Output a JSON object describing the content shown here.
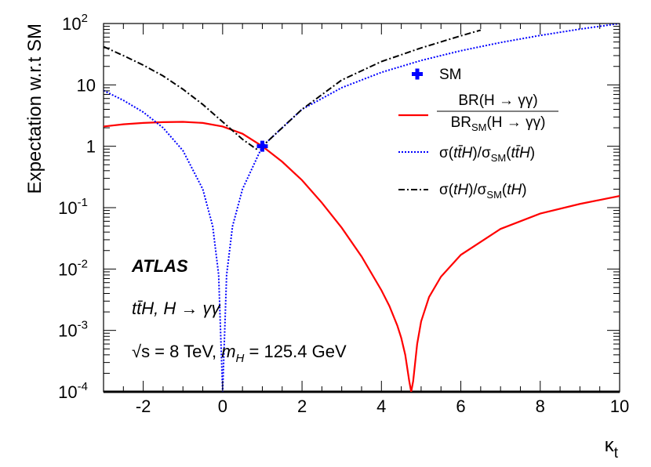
{
  "chart_data": {
    "type": "line",
    "xlabel": "κ",
    "xlabel_sub": "t",
    "ylabel": "Expectation w.r.t SM",
    "xlim": [
      -3,
      10
    ],
    "ylim": [
      0.0001,
      100
    ],
    "yscale": "log",
    "grid": false,
    "legend_position": "top-right",
    "x_ticks": [
      {
        "v": -2,
        "label": "-2"
      },
      {
        "v": 0,
        "label": "0"
      },
      {
        "v": 2,
        "label": "2"
      },
      {
        "v": 4,
        "label": "4"
      },
      {
        "v": 6,
        "label": "6"
      },
      {
        "v": 8,
        "label": "8"
      },
      {
        "v": 10,
        "label": "10"
      }
    ],
    "y_ticks": [
      {
        "v": 0.0001,
        "base": "10",
        "exp": "-4"
      },
      {
        "v": 0.001,
        "base": "10",
        "exp": "-3"
      },
      {
        "v": 0.01,
        "base": "10",
        "exp": "-2"
      },
      {
        "v": 0.1,
        "base": "10",
        "exp": "-1"
      },
      {
        "v": 1,
        "base": "1",
        "exp": ""
      },
      {
        "v": 10,
        "base": "10",
        "exp": ""
      },
      {
        "v": 100,
        "base": "10",
        "exp": "2"
      }
    ],
    "series": [
      {
        "key": "br",
        "color": "#ff0000",
        "dash": "",
        "x": [
          -3,
          -2.5,
          -2,
          -1.5,
          -1,
          -0.5,
          0,
          0.5,
          1,
          1.5,
          2,
          2.5,
          3,
          3.5,
          4,
          4.2,
          4.4,
          4.5,
          4.6,
          4.7,
          4.75,
          4.8,
          4.9,
          5.0,
          5.2,
          5.5,
          6,
          7,
          8,
          9,
          10
        ],
        "y": [
          2.1,
          2.28,
          2.4,
          2.47,
          2.5,
          2.4,
          2.1,
          1.6,
          1.0,
          0.56,
          0.28,
          0.12,
          0.047,
          0.016,
          0.0045,
          0.0025,
          0.0012,
          0.00075,
          0.0004,
          0.00015,
          0.0001,
          0.00015,
          0.0006,
          0.0014,
          0.0035,
          0.0075,
          0.017,
          0.045,
          0.08,
          0.115,
          0.155
        ]
      },
      {
        "key": "tth",
        "color": "#0000ff",
        "dash": "2,2",
        "x": [
          -3,
          -2.5,
          -2,
          -1.5,
          -1,
          -0.5,
          -0.25,
          -0.1,
          0,
          0.1,
          0.25,
          0.5,
          1,
          2,
          3,
          4,
          5,
          6,
          7,
          8,
          9,
          10
        ],
        "y": [
          8.1,
          5.6,
          3.6,
          2.0,
          0.85,
          0.2,
          0.05,
          0.008,
          0.0001,
          0.008,
          0.05,
          0.2,
          1.0,
          4.0,
          9.0,
          16,
          25,
          36,
          49,
          64,
          81,
          100
        ]
      },
      {
        "key": "th",
        "color": "#000000",
        "dash": "8,3,2,3",
        "x": [
          -3,
          -2.5,
          -2,
          -1.5,
          -1,
          -0.5,
          0,
          0.5,
          0.85,
          1,
          1.5,
          2,
          3,
          4,
          5,
          6,
          6.5
        ],
        "y": [
          42,
          30,
          21,
          14,
          8.5,
          4.8,
          2.5,
          1.3,
          0.9,
          1.0,
          2.0,
          4.0,
          12,
          24,
          40,
          63,
          78
        ]
      }
    ],
    "sm_point": {
      "x": 1,
      "y": 1,
      "color": "#0000ff",
      "label": "SM"
    },
    "legend": {
      "sm": "SM",
      "br": {
        "num": "BR(H → γγ)",
        "den_pre": "BR",
        "den_sub": "SM",
        "den_post": "(H → γγ)"
      },
      "tth": {
        "pre": "σ(",
        "italic": "tt̄H",
        "mid": ")/σ",
        "sub": "SM",
        "post_italic": "tt̄H"
      },
      "th": {
        "pre": "σ(",
        "italic": "tH",
        "mid": ")/σ",
        "sub": "SM",
        "post_italic": "tH"
      }
    },
    "annotations": {
      "atlas": "ATLAS",
      "process": "tt̄H, H → γγ",
      "sqrt_s": "√s = 8 TeV,",
      "mass_label": "m",
      "mass_sub": "H",
      "mass_value": " = 125.4 GeV"
    }
  }
}
